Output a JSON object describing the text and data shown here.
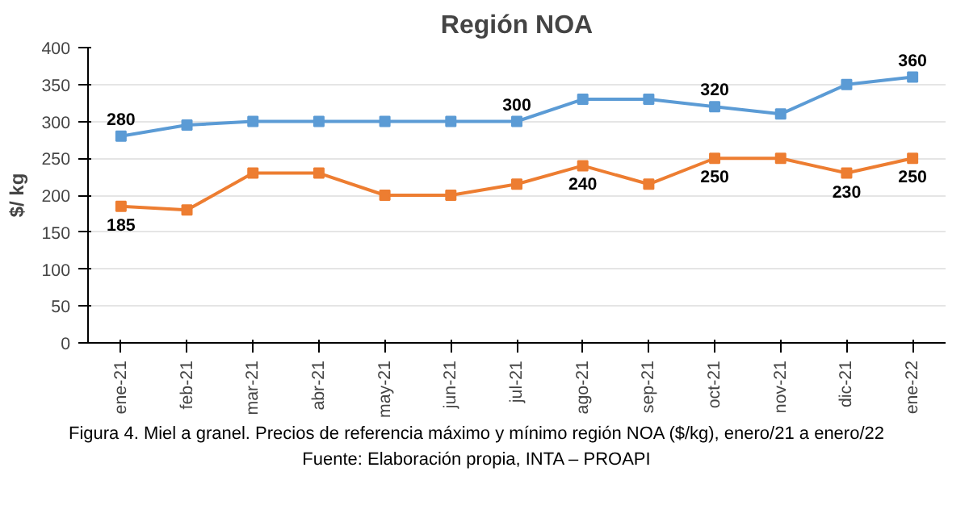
{
  "chart_data": {
    "type": "line",
    "title": "Región NOA",
    "ylabel": "$/ kg",
    "categories": [
      "ene-21",
      "feb-21",
      "mar-21",
      "abr-21",
      "may-21",
      "jun-21",
      "jul-21",
      "ago-21",
      "sep-21",
      "oct-21",
      "nov-21",
      "dic-21",
      "ene-22"
    ],
    "series": [
      {
        "color": "#5b9bd5",
        "values": [
          280,
          295,
          300,
          300,
          300,
          300,
          300,
          330,
          330,
          320,
          310,
          350,
          360
        ],
        "value_labels": [
          "280",
          null,
          null,
          null,
          null,
          null,
          "300",
          null,
          null,
          "320",
          null,
          null,
          "360"
        ]
      },
      {
        "color": "#ed7d31",
        "values": [
          185,
          180,
          230,
          230,
          200,
          200,
          215,
          240,
          215,
          250,
          250,
          230,
          250
        ],
        "value_labels": [
          "185",
          null,
          null,
          null,
          null,
          null,
          null,
          "240",
          null,
          "250",
          null,
          "230",
          "250"
        ]
      }
    ],
    "ylim": [
      0,
      400
    ],
    "yticks": [
      0,
      50,
      100,
      150,
      200,
      250,
      300,
      350,
      400
    ],
    "grid": "y",
    "marker": "square",
    "line_style": "solid",
    "annotations": [
      "Figura 4. Miel a granel. Precios de referencia máximo y mínimo región NOA ($/kg), enero/21 a enero/22",
      "Fuente: Elaboración propia, INTA – PROAPI"
    ]
  }
}
